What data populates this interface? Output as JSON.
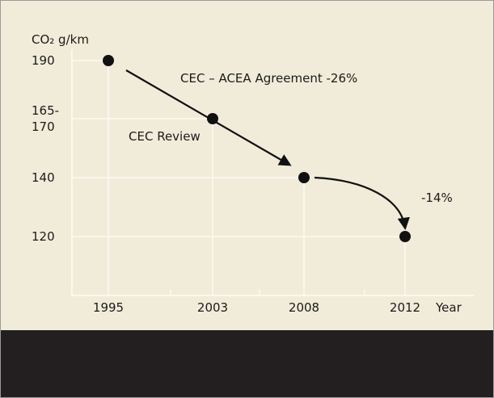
{
  "chart_data": {
    "type": "scatter",
    "y_label": "CO₂ g/km",
    "x_label": "Year",
    "categories": [
      "1995",
      "2003",
      "2008",
      "2012"
    ],
    "values": [
      190,
      167.5,
      140,
      120
    ],
    "yticks": [
      190,
      {
        "value": 167.5,
        "label": "165-\n170"
      },
      140,
      120
    ],
    "annotations": [
      "CEC – ACEA Agreement -26%",
      "CEC Review",
      "-14%"
    ],
    "color": "#111111",
    "grid": true
  }
}
